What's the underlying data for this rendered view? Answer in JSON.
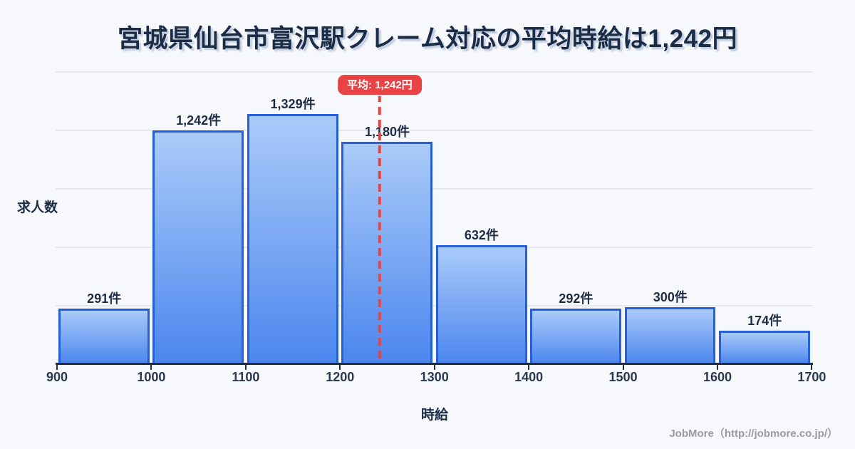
{
  "page": {
    "footer": "JobMore（http://jobmore.co.jp/）"
  },
  "chart_data": {
    "type": "bar",
    "title": "宮城県仙台市富沢駅クレーム対応の平均時給は1,242円",
    "xlabel": "時給",
    "ylabel": "求人数",
    "categories": [
      "900-1000",
      "1000-1100",
      "1100-1200",
      "1200-1300",
      "1300-1400",
      "1400-1500",
      "1500-1600",
      "1600-1700"
    ],
    "values": [
      291,
      1242,
      1329,
      1180,
      632,
      292,
      300,
      174
    ],
    "value_labels": [
      "291件",
      "1,242件",
      "1,329件",
      "1,180件",
      "632件",
      "292件",
      "300件",
      "174件"
    ],
    "x_ticks": [
      "900",
      "1000",
      "1100",
      "1200",
      "1300",
      "1400",
      "1500",
      "1600",
      "1700"
    ],
    "xlim": [
      900,
      1700
    ],
    "ylim": [
      0,
      1557
    ],
    "grid": true,
    "legend": "none",
    "average": 1242,
    "average_label": "平均: 1,242円",
    "colors": {
      "bar_fill_top": "#aacbf9",
      "bar_fill_bottom": "#4c86ee",
      "bar_border": "#2560da",
      "average_line": "#e84444",
      "badge_background": "#e84345",
      "badge_text": "#ffffff",
      "title_text": "#1b2c47",
      "axis_text": "#2b3950",
      "grid_line": "#e4e8f0",
      "axis_line": "#1f2c44",
      "background": "#f7f8fb",
      "footer_text": "#9b9ba3"
    }
  }
}
